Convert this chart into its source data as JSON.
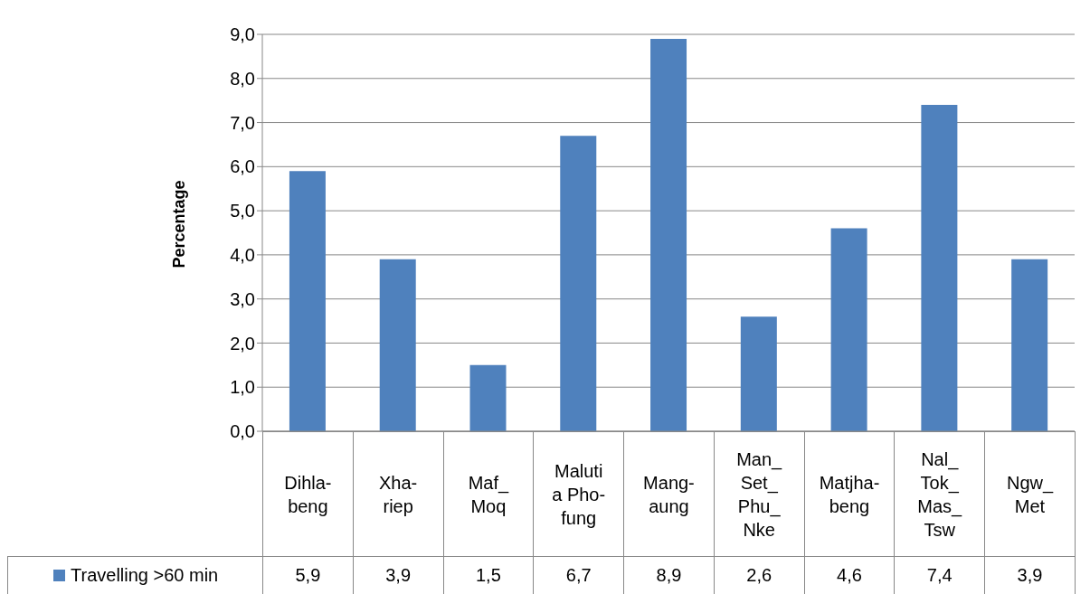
{
  "chart_data": {
    "type": "bar",
    "ylabel": "Percentage",
    "categories": [
      "Dihla-beng",
      "Xha-riep",
      "Maf_Moq",
      "Maluti a Pho-fung",
      "Mang-aung",
      "Man_Set_Phu_Nke",
      "Matjha-beng",
      "Nal_Tok_Mas_Tsw",
      "Ngw_Met"
    ],
    "series": [
      {
        "name": "Travelling >60 min",
        "color": "#4f81bd",
        "values": [
          5.9,
          3.9,
          1.5,
          6.7,
          8.9,
          2.6,
          4.6,
          7.4,
          3.9
        ],
        "value_labels": [
          "5,9",
          "3,9",
          "1,5",
          "6,7",
          "8,9",
          "2,6",
          "4,6",
          "7,4",
          "3,9"
        ]
      }
    ],
    "ylim": [
      0,
      9
    ],
    "yticks": [
      {
        "value": 0,
        "label": "0,0"
      },
      {
        "value": 1,
        "label": "1,0"
      },
      {
        "value": 2,
        "label": "2,0"
      },
      {
        "value": 3,
        "label": "3,0"
      },
      {
        "value": 4,
        "label": "4,0"
      },
      {
        "value": 5,
        "label": "5,0"
      },
      {
        "value": 6,
        "label": "6,0"
      },
      {
        "value": 7,
        "label": "7,0"
      },
      {
        "value": 8,
        "label": "8,0"
      },
      {
        "value": 9,
        "label": "9,0"
      }
    ],
    "grid": "y",
    "legend": "bottom"
  }
}
